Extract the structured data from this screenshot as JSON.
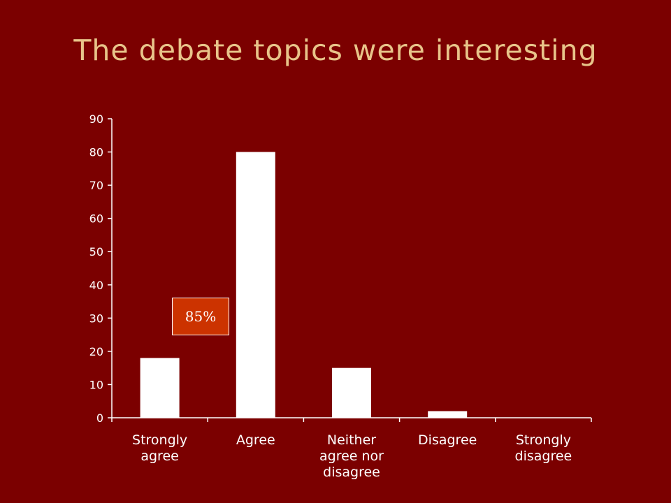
{
  "title": "The debate topics were interesting",
  "callout": "85%",
  "colors": {
    "background": "#7b0000",
    "title": "#e8c48a",
    "bars": "#ffffff",
    "callout": "#cc3300"
  },
  "chart_data": {
    "type": "bar",
    "categories": [
      [
        "Strongly",
        "agree"
      ],
      [
        "Agree"
      ],
      [
        "Neither",
        "agree nor",
        "disagree"
      ],
      [
        "Disagree"
      ],
      [
        "Strongly",
        "disagree"
      ]
    ],
    "values": [
      18,
      80,
      15,
      2,
      0
    ],
    "yticks": [
      "0",
      "10",
      "20",
      "30",
      "40",
      "50",
      "60",
      "70",
      "80",
      "90"
    ],
    "ylim": [
      0,
      90
    ],
    "grid": false,
    "legend": "none"
  }
}
